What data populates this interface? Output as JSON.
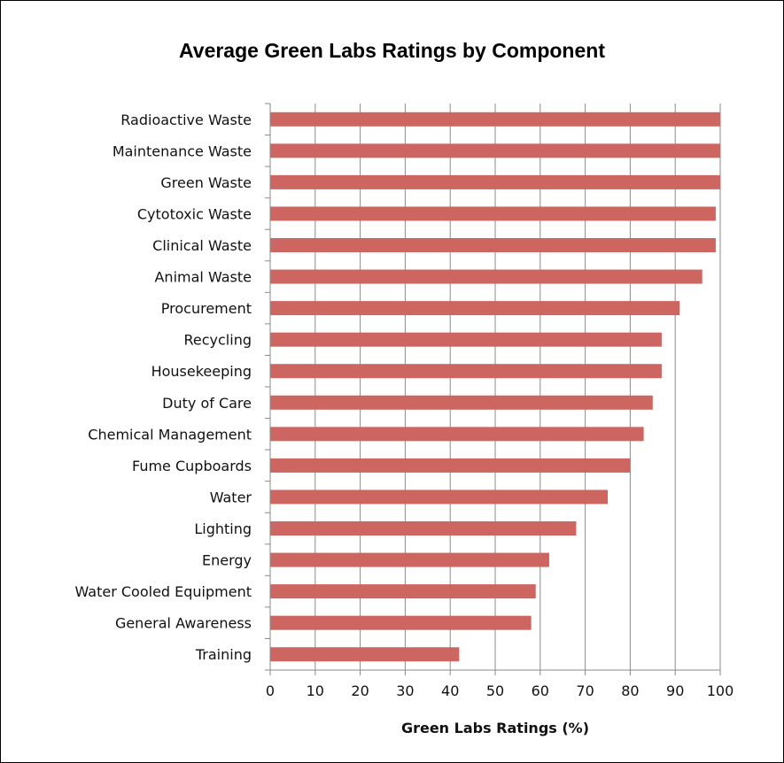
{
  "chart_data": {
    "type": "bar",
    "orientation": "horizontal",
    "title": "Average Green Labs Ratings by Component",
    "xlabel": "Green Labs Ratings (%)",
    "ylabel": "",
    "xlim": [
      0,
      100
    ],
    "x_ticks": [
      "0",
      "10",
      "20",
      "30",
      "40",
      "50",
      "60",
      "70",
      "80",
      "90",
      "100"
    ],
    "grid": "vertical",
    "bar_color": "#cd6660",
    "categories": [
      "Radioactive Waste",
      "Maintenance Waste",
      "Green Waste",
      "Cytotoxic Waste",
      "Clinical Waste",
      "Animal Waste",
      "Procurement",
      "Recycling",
      "Housekeeping",
      "Duty of Care",
      "Chemical Management",
      "Fume Cupboards",
      "Water",
      "Lighting",
      "Energy",
      "Water Cooled Equipment",
      "General Awareness",
      "Training"
    ],
    "values": [
      100,
      100,
      100,
      99,
      99,
      96,
      91,
      87,
      87,
      85,
      83,
      80,
      75,
      68,
      62,
      59,
      58,
      42
    ]
  }
}
